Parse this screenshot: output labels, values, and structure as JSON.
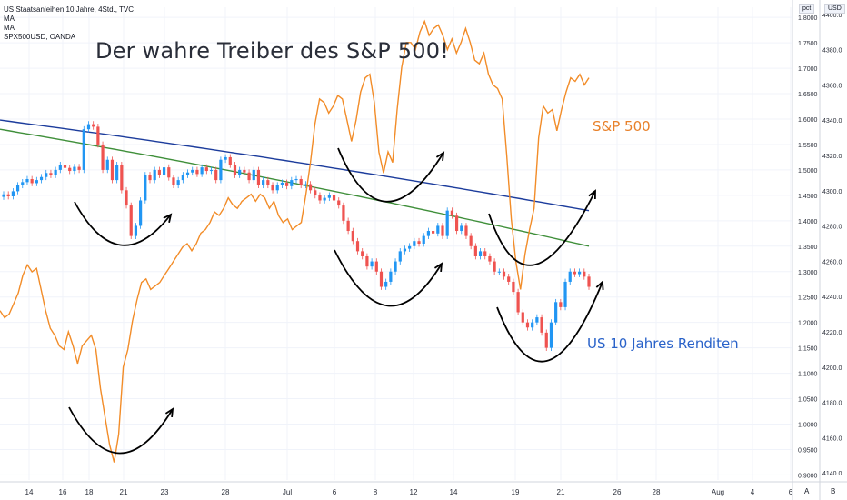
{
  "legend": {
    "line1": "US Staatsanleihen 10 Jahre, 4Std., TVC",
    "line2": "MA",
    "line3": "MA",
    "line4": "SPX500USD, OANDA"
  },
  "annotations": {
    "title": "Der wahre Treiber des S&P 500!",
    "sp_label": "S&P 500",
    "us_label": "US 10 Jahres Renditen"
  },
  "axis_buttons": {
    "left_unit": "pct",
    "right_unit": "USD",
    "auto": "A",
    "log": "B"
  },
  "colors": {
    "sp_line": "#f28c28",
    "ma_blue": "#1c3c9c",
    "ma_green": "#3f8f3a",
    "candle_up": "#2196f3",
    "candle_down": "#ef5350",
    "arrows": "#000000",
    "grid": "#f0f3fa"
  },
  "chart_data": {
    "type": "line",
    "title": "Der wahre Treiber des S&P 500!",
    "x_ticks": [
      "14",
      "16",
      "18",
      "21",
      "23",
      "28",
      "Jul",
      "6",
      "8",
      "12",
      "14",
      "19",
      "21",
      "26",
      "28",
      "Aug",
      "4",
      "6"
    ],
    "left_axis": {
      "unit": "pct",
      "ticks": [
        "1.8000",
        "1.7500",
        "1.7000",
        "1.6500",
        "1.6000",
        "1.5500",
        "1.5000",
        "1.4500",
        "1.4000",
        "1.3500",
        "1.3000",
        "1.2500",
        "1.2000",
        "1.1500",
        "1.1000",
        "1.0500",
        "1.0000",
        "0.9500",
        "0.9000"
      ],
      "range": [
        0.89,
        1.82
      ]
    },
    "right_axis": {
      "unit": "USD",
      "ticks": [
        "4400.0",
        "4380.0",
        "4360.0",
        "4340.0",
        "4320.0",
        "4300.0",
        "4280.0",
        "4260.0",
        "4240.0",
        "4220.0",
        "4200.0",
        "4180.0",
        "4160.0",
        "4140.0"
      ],
      "range": [
        4136,
        4404
      ]
    },
    "series": [
      {
        "name": "US Staatsanleihen 10 Jahre, 4Std., TVC",
        "kind": "candlestick",
        "axis": "left",
        "closes": [
          1.452,
          1.448,
          1.458,
          1.47,
          1.476,
          1.482,
          1.474,
          1.48,
          1.486,
          1.494,
          1.49,
          1.5,
          1.51,
          1.504,
          1.498,
          1.506,
          1.5,
          1.58,
          1.59,
          1.585,
          1.55,
          1.5,
          1.52,
          1.48,
          1.51,
          1.46,
          1.43,
          1.37,
          1.39,
          1.44,
          1.49,
          1.48,
          1.5,
          1.49,
          1.505,
          1.485,
          1.47,
          1.48,
          1.49,
          1.495,
          1.5,
          1.492,
          1.505,
          1.498,
          1.5,
          1.48,
          1.52,
          1.525,
          1.51,
          1.49,
          1.5,
          1.495,
          1.48,
          1.5,
          1.47,
          1.48,
          1.47,
          1.46,
          1.47,
          1.475,
          1.468,
          1.48,
          1.482,
          1.47,
          1.472,
          1.46,
          1.45,
          1.44,
          1.445,
          1.45,
          1.44,
          1.43,
          1.4,
          1.38,
          1.36,
          1.34,
          1.33,
          1.31,
          1.32,
          1.3,
          1.27,
          1.28,
          1.3,
          1.32,
          1.34,
          1.345,
          1.35,
          1.36,
          1.355,
          1.37,
          1.38,
          1.375,
          1.39,
          1.37,
          1.42,
          1.41,
          1.38,
          1.39,
          1.37,
          1.35,
          1.33,
          1.34,
          1.33,
          1.32,
          1.3,
          1.3,
          1.29,
          1.28,
          1.26,
          1.22,
          1.2,
          1.19,
          1.2,
          1.21,
          1.18,
          1.15,
          1.2,
          1.24,
          1.23,
          1.28,
          1.3,
          1.295,
          1.3,
          1.29,
          1.27
        ]
      },
      {
        "name": "S&P 500",
        "kind": "line",
        "axis": "right",
        "values": [
          4232,
          4228,
          4230,
          4236,
          4242,
          4252,
          4258,
          4254,
          4256,
          4244,
          4232,
          4222,
          4218,
          4212,
          4210,
          4220,
          4212,
          4202,
          4212,
          4215,
          4218,
          4210,
          4188,
          4172,
          4156,
          4146,
          4162,
          4200,
          4210,
          4226,
          4238,
          4248,
          4250,
          4244,
          4246,
          4248,
          4252,
          4256,
          4260,
          4264,
          4268,
          4270,
          4266,
          4270,
          4276,
          4278,
          4282,
          4288,
          4286,
          4290,
          4296,
          4292,
          4290,
          4294,
          4296,
          4298,
          4294,
          4298,
          4296,
          4290,
          4294,
          4286,
          4282,
          4284,
          4278,
          4280,
          4282,
          4298,
          4316,
          4338,
          4352,
          4350,
          4344,
          4348,
          4354,
          4352,
          4340,
          4328,
          4340,
          4356,
          4364,
          4366,
          4350,
          4322,
          4310,
          4322,
          4316,
          4346,
          4370,
          4384,
          4384,
          4380,
          4390,
          4396,
          4388,
          4392,
          4394,
          4388,
          4380,
          4386,
          4378,
          4384,
          4392,
          4384,
          4374,
          4372,
          4378,
          4366,
          4360,
          4358,
          4352,
          4320,
          4284,
          4260,
          4244,
          4264,
          4278,
          4290,
          4330,
          4348,
          4344,
          4346,
          4334,
          4346,
          4356,
          4364,
          4362,
          4366,
          4360,
          4364
        ]
      },
      {
        "name": "MA",
        "kind": "line",
        "axis": "left",
        "start": 1.598,
        "end": 1.42
      },
      {
        "name": "MA",
        "kind": "line",
        "axis": "left",
        "start": 1.58,
        "end": 1.35
      }
    ]
  }
}
